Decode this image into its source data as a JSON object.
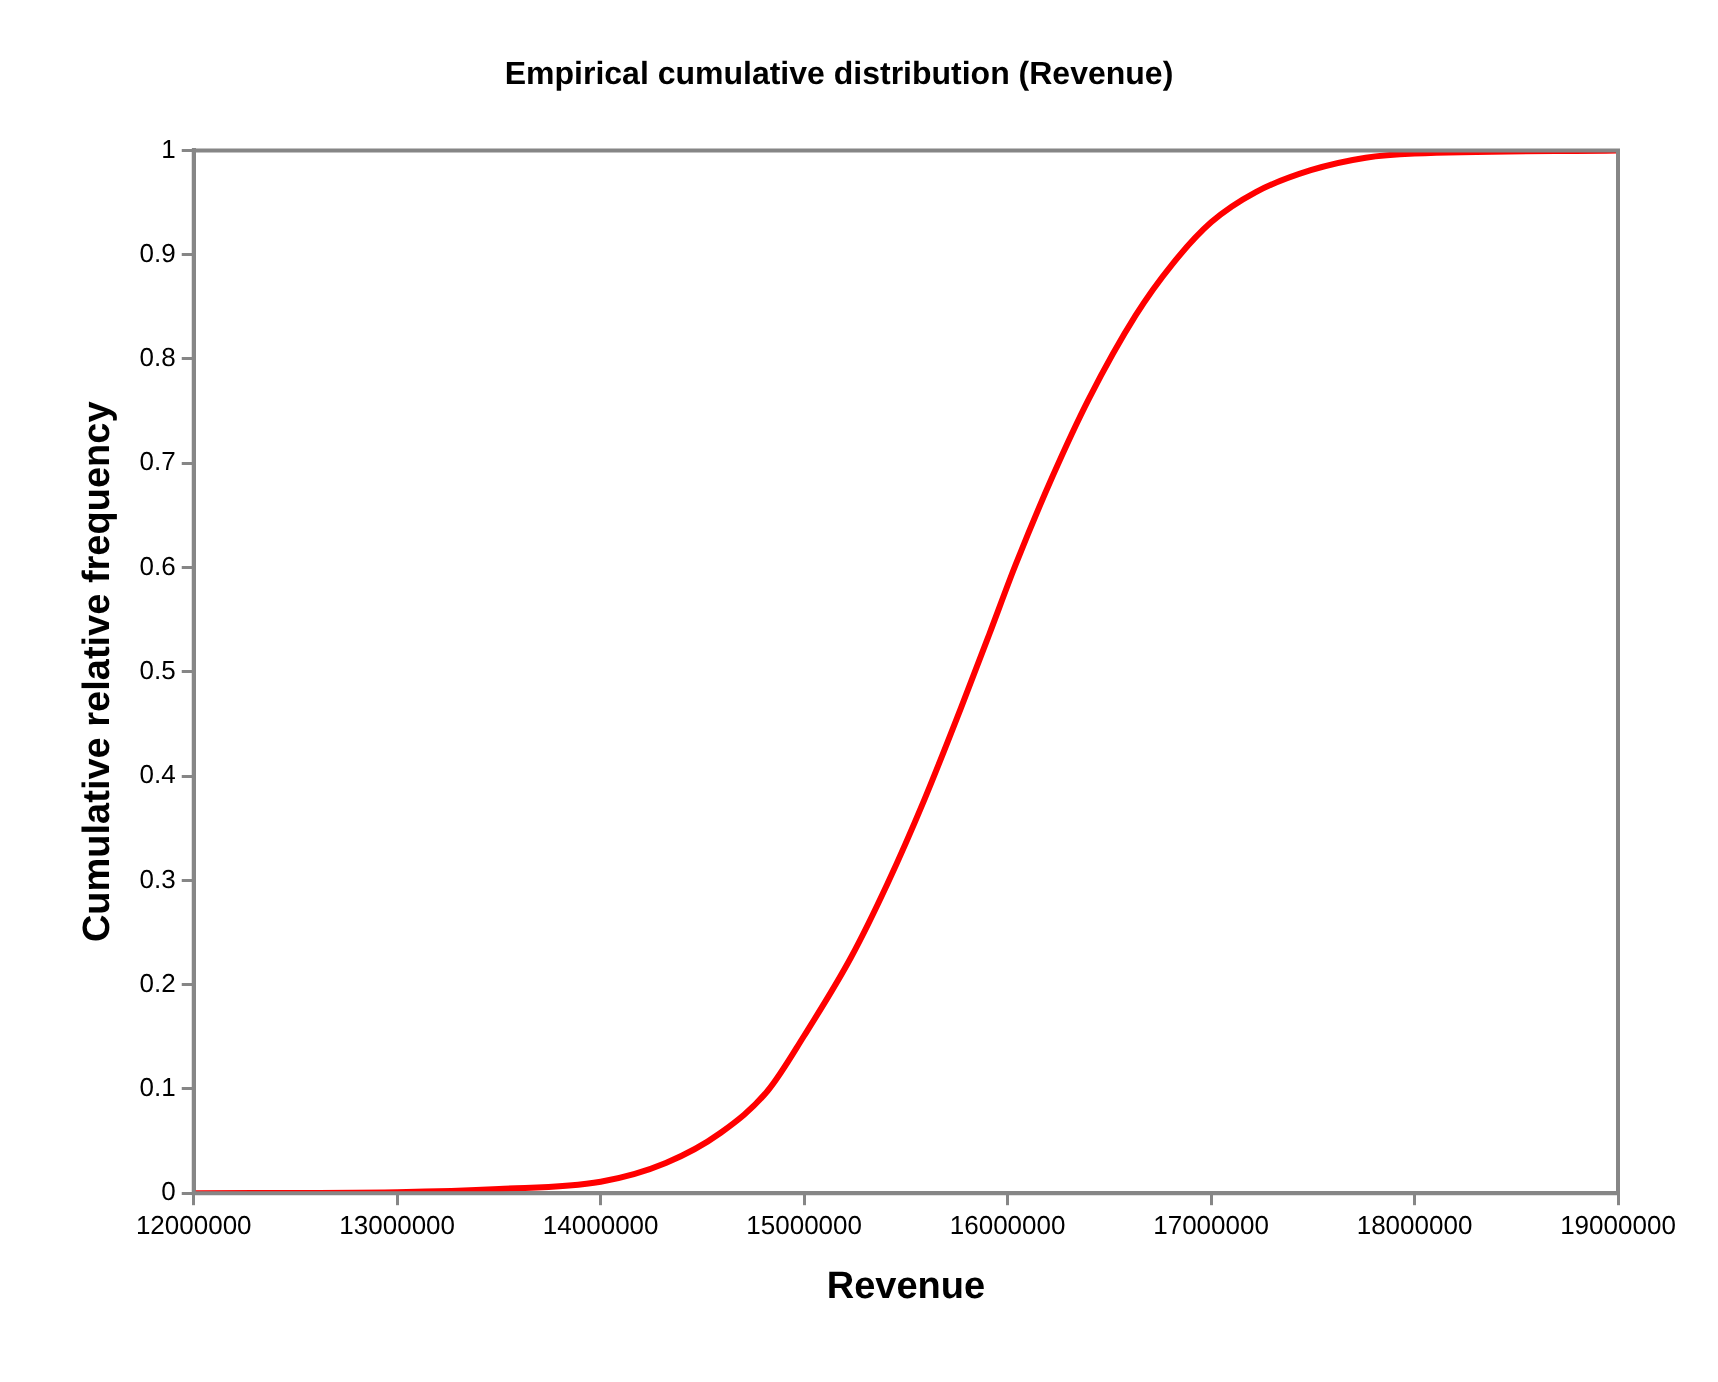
{
  "chart_data": {
    "type": "line",
    "title": "Empirical cumulative distribution (Revenue)",
    "xlabel": "Revenue",
    "ylabel": "Cumulative relative frequency",
    "x": [
      12000000,
      13000000,
      13500000,
      14000000,
      14320000,
      14590000,
      14820000,
      15000000,
      15230000,
      15410000,
      15590000,
      15770000,
      15910000,
      16040000,
      16220000,
      16400000,
      16630000,
      16810000,
      17000000,
      17220000,
      17490000,
      17760000,
      18000000,
      19000000
    ],
    "series": [
      {
        "color": "#ff0000",
        "values": [
          0,
          0.001,
          0.004,
          0.011,
          0.029,
          0.058,
          0.098,
          0.151,
          0.226,
          0.297,
          0.377,
          0.465,
          0.536,
          0.603,
          0.687,
          0.762,
          0.842,
          0.891,
          0.931,
          0.96,
          0.981,
          0.993,
          0.997,
          1
        ]
      }
    ],
    "xlim": [
      12000000,
      19000000
    ],
    "xticks": [
      12000000,
      13000000,
      14000000,
      15000000,
      16000000,
      17000000,
      18000000,
      19000000
    ],
    "ylim": [
      0,
      1
    ],
    "yticks": [
      0,
      0.1,
      0.2,
      0.3,
      0.4,
      0.5,
      0.6,
      0.7,
      0.8,
      0.9,
      1
    ],
    "grid": false,
    "legend": false,
    "marker": "none",
    "line_style": "solid"
  }
}
